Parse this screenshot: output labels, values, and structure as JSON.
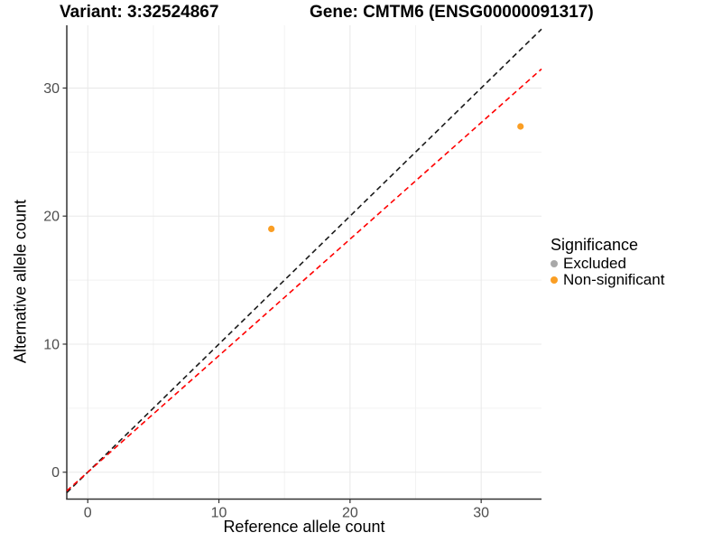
{
  "title": {
    "variant": "Variant: 3:32524867",
    "gene": "Gene: CMTM6 (ENSG00000091317)"
  },
  "chart_data": {
    "type": "scatter",
    "xlabel": "Reference allele count",
    "ylabel": "Alternative allele count",
    "xlim": [
      -1.6,
      34.6
    ],
    "ylim": [
      -2.1,
      34.9
    ],
    "x_ticks": [
      0,
      10,
      20,
      30
    ],
    "y_ticks": [
      0,
      10,
      20,
      30
    ],
    "x_minor_ticks": [
      5,
      15,
      25
    ],
    "y_minor_ticks": [
      5,
      15,
      25
    ],
    "grid": "major+minor, light gray on white",
    "points": [
      {
        "x": 14,
        "y": 19,
        "series": "Non-significant"
      },
      {
        "x": 33,
        "y": 27,
        "series": "Non-significant"
      }
    ],
    "lines": [
      {
        "name": "identity-line",
        "slope": 1.0,
        "intercept": 0,
        "color": "#1a1a1a",
        "style": "dashed"
      },
      {
        "name": "expected-ratio-line",
        "slope": 0.91,
        "intercept": 0,
        "color": "#ff0000",
        "style": "dashed"
      }
    ],
    "legend": {
      "title": "Significance",
      "position": "right",
      "items": [
        {
          "label": "Excluded",
          "color": "#a8a8a8"
        },
        {
          "label": "Non-significant",
          "color": "#fa9e24"
        }
      ]
    }
  },
  "colors": {
    "background": "#ffffff",
    "major_grid": "#e8e8e8",
    "minor_grid": "#f2f2f2",
    "axis_line": "#333333",
    "tick_label": "#4d4d4d",
    "point_nonsignificant": "#fa9e24",
    "point_excluded": "#a8a8a8",
    "identity_line": "#1a1a1a",
    "expected_line": "#ff0000"
  }
}
